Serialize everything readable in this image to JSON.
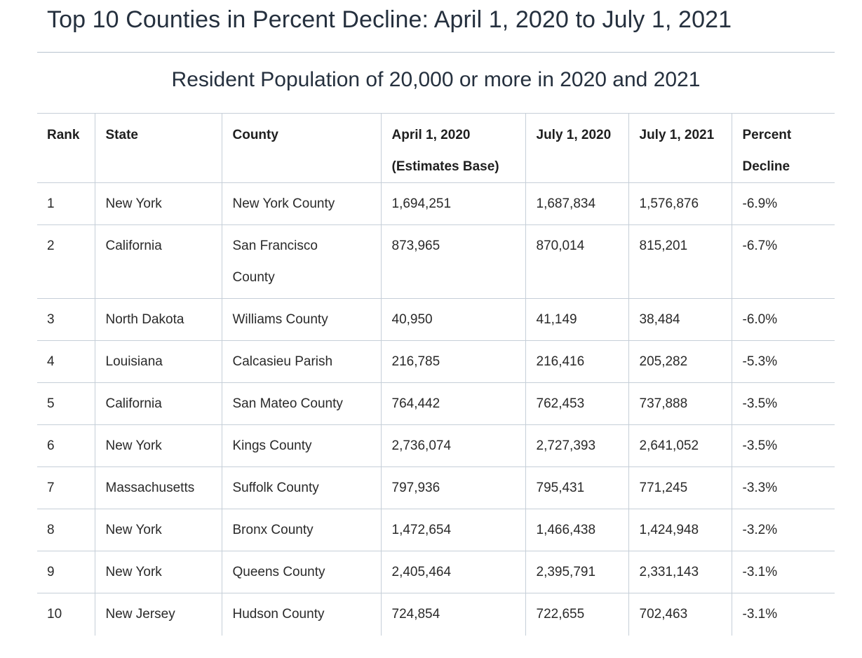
{
  "title": "Top 10 Counties in Percent Decline: April 1, 2020 to July 1, 2021",
  "caption": "Resident Population of 20,000 or more in 2020 and 2021",
  "columns": {
    "rank": "Rank",
    "state": "State",
    "county": "County",
    "april_line1": "April 1, 2020",
    "april_line2": "(Estimates Base)",
    "july2020": "July 1, 2020",
    "july2021": "July 1, 2021",
    "pct_line1": "Percent",
    "pct_line2": "Decline"
  },
  "rows": [
    {
      "rank": "1",
      "state": "New York",
      "county_line1": "New York County",
      "county_line2": "",
      "april2020": "1,694,251",
      "july2020": "1,687,834",
      "july2021": "1,576,876",
      "pct": "-6.9%"
    },
    {
      "rank": "2",
      "state": "California",
      "county_line1": "San Francisco",
      "county_line2": "County",
      "april2020": "873,965",
      "july2020": "870,014",
      "july2021": "815,201",
      "pct": "-6.7%"
    },
    {
      "rank": "3",
      "state": "North Dakota",
      "county_line1": "Williams County",
      "county_line2": "",
      "april2020": "40,950",
      "july2020": "41,149",
      "july2021": "38,484",
      "pct": "-6.0%"
    },
    {
      "rank": "4",
      "state": "Louisiana",
      "county_line1": "Calcasieu Parish",
      "county_line2": "",
      "april2020": "216,785",
      "july2020": "216,416",
      "july2021": "205,282",
      "pct": "-5.3%"
    },
    {
      "rank": "5",
      "state": "California",
      "county_line1": "San Mateo County",
      "county_line2": "",
      "april2020": "764,442",
      "july2020": "762,453",
      "july2021": "737,888",
      "pct": "-3.5%"
    },
    {
      "rank": "6",
      "state": "New York",
      "county_line1": "Kings County",
      "county_line2": "",
      "april2020": "2,736,074",
      "july2020": "2,727,393",
      "july2021": "2,641,052",
      "pct": "-3.5%"
    },
    {
      "rank": "7",
      "state": "Massachusetts",
      "county_line1": "Suffolk County",
      "county_line2": "",
      "april2020": "797,936",
      "july2020": "795,431",
      "july2021": "771,245",
      "pct": "-3.3%"
    },
    {
      "rank": "8",
      "state": "New York",
      "county_line1": "Bronx County",
      "county_line2": "",
      "april2020": "1,472,654",
      "july2020": "1,466,438",
      "july2021": "1,424,948",
      "pct": "-3.2%"
    },
    {
      "rank": "9",
      "state": "New York",
      "county_line1": "Queens County",
      "county_line2": "",
      "april2020": "2,405,464",
      "july2020": "2,395,791",
      "july2021": "2,331,143",
      "pct": "-3.1%"
    },
    {
      "rank": "10",
      "state": "New Jersey",
      "county_line1": "Hudson County",
      "county_line2": "",
      "april2020": "724,854",
      "july2020": "722,655",
      "july2021": "702,463",
      "pct": "-3.1%"
    }
  ]
}
